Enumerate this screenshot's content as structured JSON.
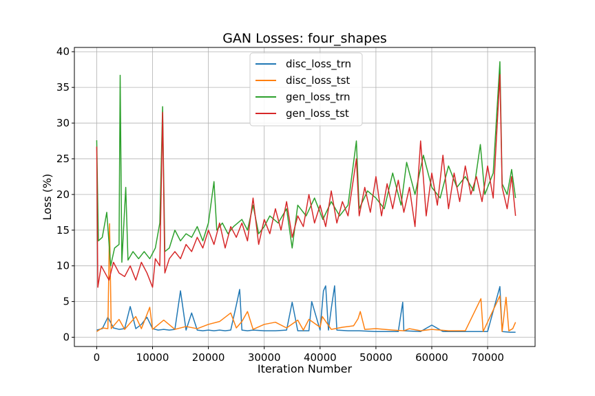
{
  "chart_data": {
    "type": "line",
    "title": "GAN Losses: four_shapes",
    "xlabel": "Iteration Number",
    "ylabel": "Loss (%)",
    "xlim": [
      -4000,
      78500
    ],
    "ylim": [
      -1.3,
      40.6
    ],
    "x_ticks": [
      0,
      10000,
      20000,
      30000,
      40000,
      50000,
      60000,
      70000
    ],
    "y_ticks": [
      0,
      5,
      10,
      15,
      20,
      25,
      30,
      35,
      40
    ],
    "grid": true,
    "legend_position": "top-center",
    "x_range": [
      0,
      75000
    ],
    "series": [
      {
        "name": "disc_loss_trn",
        "color": "#1f77b4",
        "points": [
          [
            0,
            1.0
          ],
          [
            1000,
            1.2
          ],
          [
            2000,
            2.8
          ],
          [
            3000,
            1.3
          ],
          [
            4000,
            1.1
          ],
          [
            5000,
            1.2
          ],
          [
            6000,
            4.3
          ],
          [
            7000,
            1.2
          ],
          [
            8000,
            1.8
          ],
          [
            9000,
            2.8
          ],
          [
            10000,
            1.2
          ],
          [
            11000,
            1.0
          ],
          [
            12000,
            1.1
          ],
          [
            13000,
            1.0
          ],
          [
            14000,
            1.1
          ],
          [
            15000,
            6.5
          ],
          [
            16000,
            1.0
          ],
          [
            17000,
            3.4
          ],
          [
            18000,
            1.0
          ],
          [
            19000,
            0.9
          ],
          [
            20000,
            1.0
          ],
          [
            21000,
            0.9
          ],
          [
            22000,
            1.0
          ],
          [
            23000,
            0.9
          ],
          [
            24000,
            1.0
          ],
          [
            25000,
            4.5
          ],
          [
            25600,
            6.7
          ],
          [
            26000,
            1.0
          ],
          [
            27000,
            0.9
          ],
          [
            28000,
            1.0
          ],
          [
            30000,
            0.9
          ],
          [
            32000,
            0.9
          ],
          [
            34000,
            1.0
          ],
          [
            35000,
            4.9
          ],
          [
            36000,
            0.9
          ],
          [
            38000,
            0.9
          ],
          [
            38500,
            5.0
          ],
          [
            40000,
            1.0
          ],
          [
            40600,
            6.5
          ],
          [
            41000,
            7.2
          ],
          [
            41500,
            1.0
          ],
          [
            42000,
            4.0
          ],
          [
            42600,
            7.2
          ],
          [
            43000,
            1.0
          ],
          [
            45000,
            0.9
          ],
          [
            47000,
            0.9
          ],
          [
            50000,
            0.8
          ],
          [
            52000,
            0.8
          ],
          [
            54000,
            0.8
          ],
          [
            54800,
            4.9
          ],
          [
            55000,
            0.9
          ],
          [
            58000,
            0.8
          ],
          [
            60000,
            1.7
          ],
          [
            62000,
            0.8
          ],
          [
            65000,
            0.8
          ],
          [
            68000,
            0.8
          ],
          [
            70000,
            0.8
          ],
          [
            72200,
            7.1
          ],
          [
            72600,
            0.8
          ],
          [
            74000,
            0.7
          ],
          [
            75000,
            0.7
          ]
        ]
      },
      {
        "name": "disc_loss_tst",
        "color": "#ff7f0e",
        "points": [
          [
            0,
            0.8
          ],
          [
            1000,
            1.3
          ],
          [
            2000,
            1.2
          ],
          [
            2300,
            15.9
          ],
          [
            2600,
            1.2
          ],
          [
            4000,
            2.5
          ],
          [
            5000,
            1.1
          ],
          [
            7000,
            2.9
          ],
          [
            8000,
            1.2
          ],
          [
            9500,
            4.2
          ],
          [
            10000,
            1.1
          ],
          [
            12000,
            2.4
          ],
          [
            14000,
            1.1
          ],
          [
            16000,
            1.5
          ],
          [
            18000,
            1.2
          ],
          [
            20000,
            1.8
          ],
          [
            22000,
            2.2
          ],
          [
            24000,
            3.4
          ],
          [
            25000,
            1.3
          ],
          [
            26000,
            2.2
          ],
          [
            27000,
            3.6
          ],
          [
            28000,
            1.1
          ],
          [
            30000,
            1.8
          ],
          [
            32000,
            2.1
          ],
          [
            34000,
            1.3
          ],
          [
            36000,
            2.4
          ],
          [
            37000,
            1.0
          ],
          [
            38000,
            2.5
          ],
          [
            40000,
            1.4
          ],
          [
            40400,
            2.9
          ],
          [
            42000,
            1.1
          ],
          [
            44000,
            1.4
          ],
          [
            46000,
            1.6
          ],
          [
            46800,
            2.6
          ],
          [
            47200,
            3.6
          ],
          [
            48000,
            1.1
          ],
          [
            50000,
            1.2
          ],
          [
            53000,
            1.0
          ],
          [
            55000,
            0.9
          ],
          [
            56000,
            1.2
          ],
          [
            58000,
            0.9
          ],
          [
            60000,
            1.1
          ],
          [
            63000,
            0.9
          ],
          [
            66000,
            0.9
          ],
          [
            68800,
            5.4
          ],
          [
            69200,
            0.8
          ],
          [
            72200,
            5.8
          ],
          [
            72600,
            0.8
          ],
          [
            73300,
            5.6
          ],
          [
            73800,
            0.9
          ],
          [
            74500,
            1.2
          ],
          [
            75000,
            2.1
          ]
        ]
      },
      {
        "name": "gen_loss_trn",
        "color": "#2ca02c",
        "points": [
          [
            0,
            27.6
          ],
          [
            300,
            13.5
          ],
          [
            1000,
            14.0
          ],
          [
            1800,
            17.5
          ],
          [
            2500,
            10.0
          ],
          [
            3200,
            12.5
          ],
          [
            4000,
            13.0
          ],
          [
            4200,
            36.7
          ],
          [
            4500,
            10.5
          ],
          [
            5200,
            21.0
          ],
          [
            5600,
            10.8
          ],
          [
            6500,
            12.0
          ],
          [
            7500,
            11.0
          ],
          [
            8500,
            12.0
          ],
          [
            9500,
            11.0
          ],
          [
            10500,
            12.5
          ],
          [
            11300,
            16.0
          ],
          [
            11800,
            32.3
          ],
          [
            12200,
            12.0
          ],
          [
            13000,
            12.5
          ],
          [
            14000,
            15.0
          ],
          [
            15000,
            13.5
          ],
          [
            16000,
            14.5
          ],
          [
            17000,
            14.0
          ],
          [
            18000,
            15.5
          ],
          [
            19000,
            13.5
          ],
          [
            20000,
            16.0
          ],
          [
            21000,
            21.8
          ],
          [
            21500,
            15.0
          ],
          [
            22500,
            16.0
          ],
          [
            23500,
            14.5
          ],
          [
            24500,
            15.5
          ],
          [
            26000,
            16.5
          ],
          [
            27000,
            15.0
          ],
          [
            28000,
            18.5
          ],
          [
            29000,
            14.5
          ],
          [
            30000,
            15.5
          ],
          [
            31000,
            17.0
          ],
          [
            32500,
            16.0
          ],
          [
            34000,
            18.0
          ],
          [
            35000,
            12.5
          ],
          [
            36000,
            18.5
          ],
          [
            37500,
            17.0
          ],
          [
            39000,
            19.5
          ],
          [
            40500,
            16.5
          ],
          [
            42000,
            19.0
          ],
          [
            43500,
            17.0
          ],
          [
            45000,
            18.5
          ],
          [
            46500,
            27.5
          ],
          [
            47000,
            18.0
          ],
          [
            48500,
            20.5
          ],
          [
            50000,
            19.5
          ],
          [
            51500,
            18.0
          ],
          [
            53000,
            23.0
          ],
          [
            54500,
            18.5
          ],
          [
            55500,
            24.5
          ],
          [
            57000,
            20.0
          ],
          [
            58500,
            25.5
          ],
          [
            60000,
            21.0
          ],
          [
            61500,
            19.5
          ],
          [
            63000,
            24.0
          ],
          [
            64500,
            21.0
          ],
          [
            66000,
            22.5
          ],
          [
            67500,
            20.5
          ],
          [
            68700,
            27.0
          ],
          [
            69500,
            20.0
          ],
          [
            71000,
            23.0
          ],
          [
            72200,
            38.6
          ],
          [
            72600,
            21.5
          ],
          [
            73500,
            20.0
          ],
          [
            74300,
            23.5
          ],
          [
            75000,
            19.5
          ]
        ]
      },
      {
        "name": "gen_loss_tst",
        "color": "#d62728",
        "points": [
          [
            0,
            26.7
          ],
          [
            200,
            7.0
          ],
          [
            800,
            10.0
          ],
          [
            1500,
            9.0
          ],
          [
            2200,
            8.0
          ],
          [
            3000,
            10.5
          ],
          [
            4000,
            9.0
          ],
          [
            5000,
            8.5
          ],
          [
            6000,
            10.0
          ],
          [
            7000,
            8.0
          ],
          [
            8000,
            10.5
          ],
          [
            9000,
            9.0
          ],
          [
            10000,
            7.0
          ],
          [
            10500,
            11.0
          ],
          [
            11300,
            10.0
          ],
          [
            11800,
            31.5
          ],
          [
            12200,
            9.0
          ],
          [
            13000,
            11.0
          ],
          [
            14000,
            12.0
          ],
          [
            15000,
            11.0
          ],
          [
            16000,
            13.0
          ],
          [
            17000,
            12.0
          ],
          [
            18000,
            14.0
          ],
          [
            19000,
            12.5
          ],
          [
            20000,
            15.0
          ],
          [
            21000,
            13.0
          ],
          [
            22000,
            16.0
          ],
          [
            23000,
            12.5
          ],
          [
            24000,
            15.5
          ],
          [
            25000,
            14.0
          ],
          [
            26000,
            16.0
          ],
          [
            27000,
            13.5
          ],
          [
            28000,
            19.5
          ],
          [
            29000,
            13.0
          ],
          [
            30000,
            16.5
          ],
          [
            31000,
            14.5
          ],
          [
            32000,
            18.0
          ],
          [
            33000,
            15.0
          ],
          [
            34000,
            19.0
          ],
          [
            35000,
            14.0
          ],
          [
            36000,
            17.0
          ],
          [
            37000,
            15.5
          ],
          [
            38000,
            20.0
          ],
          [
            39000,
            16.0
          ],
          [
            40000,
            18.5
          ],
          [
            41000,
            15.5
          ],
          [
            42000,
            20.5
          ],
          [
            43000,
            16.0
          ],
          [
            44000,
            19.0
          ],
          [
            45000,
            17.0
          ],
          [
            46500,
            25.0
          ],
          [
            47000,
            17.0
          ],
          [
            48000,
            21.0
          ],
          [
            49000,
            17.5
          ],
          [
            50000,
            22.5
          ],
          [
            51000,
            17.0
          ],
          [
            52000,
            21.5
          ],
          [
            53000,
            18.0
          ],
          [
            54000,
            22.0
          ],
          [
            55000,
            17.5
          ],
          [
            56000,
            21.0
          ],
          [
            57000,
            15.5
          ],
          [
            58000,
            27.5
          ],
          [
            59000,
            17.0
          ],
          [
            60000,
            23.0
          ],
          [
            61000,
            18.5
          ],
          [
            62000,
            25.5
          ],
          [
            63000,
            18.0
          ],
          [
            64000,
            23.0
          ],
          [
            65000,
            19.0
          ],
          [
            66000,
            24.0
          ],
          [
            67000,
            20.0
          ],
          [
            68000,
            22.5
          ],
          [
            69000,
            19.0
          ],
          [
            70000,
            24.0
          ],
          [
            71000,
            19.5
          ],
          [
            72200,
            36.8
          ],
          [
            72600,
            21.0
          ],
          [
            73500,
            18.0
          ],
          [
            74300,
            22.5
          ],
          [
            75000,
            17.0
          ]
        ]
      }
    ]
  }
}
